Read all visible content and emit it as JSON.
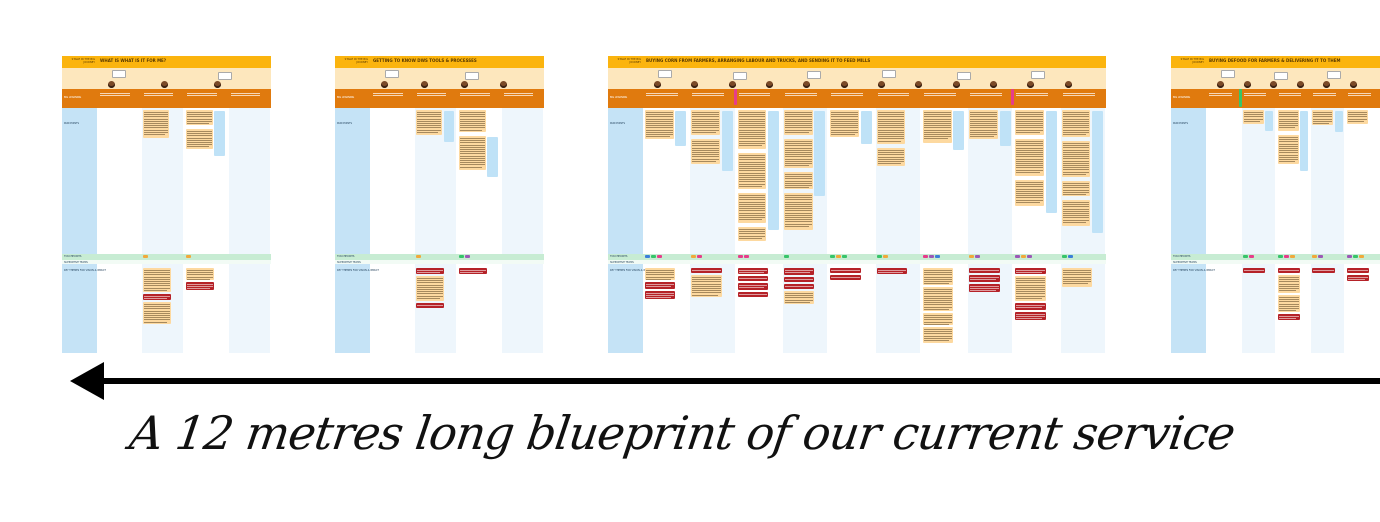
{
  "boards": [
    {
      "stage_label": "STAGE IN THE BIG JOURNEY",
      "title": "WHAT IS WHAT IS IT FOR ME?",
      "subtitle": "",
      "columns": 4,
      "avatars": 3,
      "row_labels": {
        "big_learning": "BIG LEARNING",
        "pain_points": "PAIN POINTS",
        "touchpoints": "TOUCHPOINTS",
        "support": "SUPPORTIVE TEAMS",
        "opportunities": "KEY THEMES FOR VISION & IMPACT"
      }
    },
    {
      "stage_label": "STAGE IN THE BIG JOURNEY",
      "title": "GETTING TO KNOW DWS TOOLS & PROCESSES",
      "subtitle": "",
      "columns": 4,
      "avatars": 4,
      "row_labels": {
        "big_learning": "BIG LEARNING",
        "pain_points": "PAIN POINTS",
        "touchpoints": "TOUCHPOINTS",
        "support": "SUPPORTIVE TEAMS",
        "opportunities": "KEY THEMES FOR VISION & IMPACT"
      }
    },
    {
      "stage_label": "STAGE IN THE BIG JOURNEY",
      "title": "BUYING CORN FROM FARMERS, ARRANGING LABOUR AND TRUCKS, AND SENDING IT TO FEED MILLS",
      "subtitle": "",
      "columns": 10,
      "avatars": 12,
      "row_labels": {
        "big_learning": "BIG LEARNING",
        "pain_points": "PAIN POINTS",
        "touchpoints": "TOUCHPOINTS",
        "support": "SUPPORTIVE TEAMS",
        "opportunities": "KEY THEMES FOR VISION & IMPACT"
      }
    },
    {
      "stage_label": "STAGE IN THE BIG JOURNEY",
      "title": "BUYING DEFOOD FOR FARMERS & DELIVERING IT TO THEM",
      "subtitle": "",
      "columns": 5,
      "avatars": 6,
      "row_labels": {
        "big_learning": "BIG LEARNING",
        "pain_points": "PAIN POINTS",
        "touchpoints": "TOUCHPOINTS",
        "support": "SUPPORTIVE TEAMS",
        "opportunities": "KEY THEMES FOR VISION & IMPACT"
      }
    }
  ],
  "caption": "A 12 metres long blueprint of our current service",
  "colors": {
    "header": "#fbb40e",
    "band": "#fde7bd",
    "step_band": "#e07a0e",
    "left_column": "#c5e3f6",
    "column": "#eef6fc",
    "sticky_yellow": "#fdd9a0",
    "sticky_red": "#b52228",
    "sticky_blue": "#bfe2f7",
    "touchpoint_band": "#c7ecd3",
    "arrow": "#000000"
  },
  "icons": {
    "arrow": "left-arrow-icon"
  }
}
